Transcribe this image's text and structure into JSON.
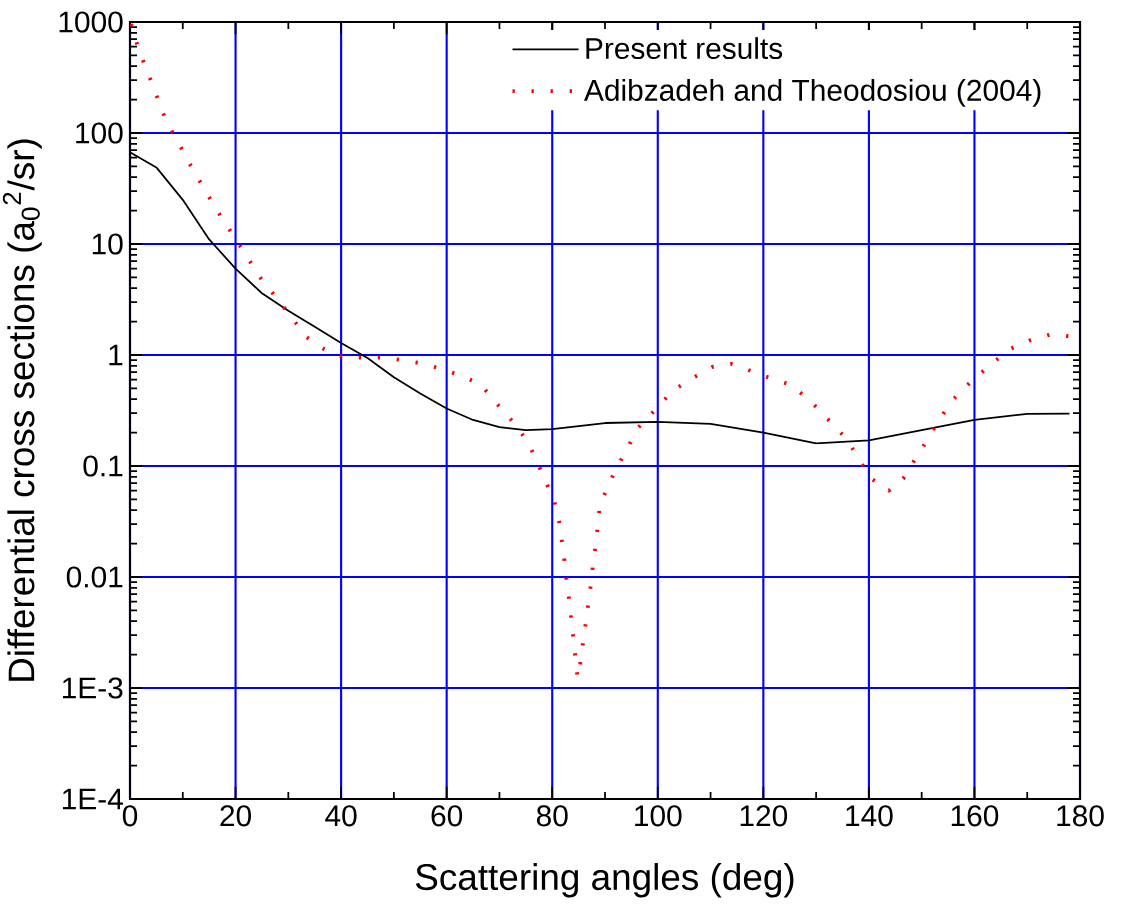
{
  "chart_data": {
    "type": "line",
    "xlabel": "Scattering angles (deg)",
    "ylabel": "Differential cross sections (a$_{0}$$^{2}$/sr)",
    "log": "y",
    "grid": true,
    "legend": "top right",
    "xlim": [
      0,
      180
    ],
    "xticks": [
      0,
      20,
      40,
      60,
      80,
      100,
      120,
      140,
      160,
      180
    ],
    "ylim": [
      0.0001,
      1000
    ],
    "yticks": [
      {
        "value": 0.0001,
        "label": "1E-4"
      },
      {
        "value": 0.001,
        "label": "1E-3"
      },
      {
        "value": 0.01,
        "label": "0.01"
      },
      {
        "value": 0.1,
        "label": "0.1"
      },
      {
        "value": 1,
        "label": "1"
      },
      {
        "value": 10,
        "label": "10"
      },
      {
        "value": 100,
        "label": "100"
      },
      {
        "value": 1000,
        "label": "1000"
      }
    ],
    "series": [
      {
        "name": "Present results",
        "color": "#000000",
        "line_style": "solid",
        "x": [
          0,
          5,
          10,
          15,
          20,
          25,
          30,
          35,
          40,
          45,
          50,
          55,
          60,
          65,
          70,
          75,
          80,
          90,
          100,
          110,
          120,
          130,
          140,
          150,
          160,
          170,
          178
        ],
        "values": [
          67,
          49,
          25,
          11,
          6.0,
          3.6,
          2.5,
          1.8,
          1.28,
          0.94,
          0.63,
          0.45,
          0.33,
          0.26,
          0.224,
          0.21,
          0.215,
          0.244,
          0.25,
          0.24,
          0.2,
          0.16,
          0.17,
          0.21,
          0.26,
          0.295,
          0.296
        ]
      },
      {
        "name": "Adibzadeh and Theodosiou (2004)",
        "color": "#ff0000",
        "line_style": "dotted",
        "x": [
          0.2,
          1.3,
          2.7,
          4.1,
          5.5,
          6.9,
          9.0,
          11.0,
          13.2,
          15.3,
          17.6,
          20.0,
          22.4,
          24.8,
          27.7,
          30.6,
          33.4,
          36.8,
          40.5,
          44.3,
          47.9,
          51.6,
          55.2,
          59.0,
          62.7,
          66.4,
          69.5,
          72.8,
          75.5,
          77.2,
          78.8,
          80.4,
          81.3,
          81.8,
          82.3,
          82.7,
          83.2,
          83.6,
          84.0,
          84.4,
          84.8,
          85.3,
          85.8,
          86.3,
          86.8,
          87.3,
          87.7,
          88.2,
          88.6,
          89.0,
          90.4,
          92.2,
          94.2,
          96.1,
          99.5,
          102.9,
          106.6,
          110.3,
          114.0,
          117.6,
          121.3,
          125.1,
          128.7,
          132.2,
          135.8,
          138.0,
          140.3,
          143.8,
          146.5,
          148.8,
          151.1,
          153.3,
          155.8,
          159.4,
          163.1,
          166.7,
          170.4,
          174.2,
          177.8
        ],
        "values": [
          960,
          640,
          420,
          285,
          190,
          126,
          85,
          56,
          37,
          25,
          16.6,
          11.1,
          7.4,
          4.9,
          3.3,
          2.2,
          1.45,
          1.13,
          0.95,
          0.95,
          0.95,
          0.9,
          0.84,
          0.75,
          0.65,
          0.545,
          0.364,
          0.243,
          0.161,
          0.107,
          0.072,
          0.048,
          0.032,
          0.0214,
          0.0142,
          0.0095,
          0.0063,
          0.0042,
          0.0028,
          0.00188,
          0.00124,
          0.00167,
          0.0025,
          0.0037,
          0.0056,
          0.0084,
          0.0126,
          0.019,
          0.028,
          0.043,
          0.064,
          0.096,
          0.143,
          0.217,
          0.32,
          0.48,
          0.62,
          0.78,
          0.83,
          0.72,
          0.62,
          0.54,
          0.395,
          0.265,
          0.175,
          0.117,
          0.078,
          0.06,
          0.077,
          0.116,
          0.173,
          0.26,
          0.39,
          0.58,
          0.82,
          1.13,
          1.35,
          1.52,
          1.48
        ]
      }
    ]
  }
}
